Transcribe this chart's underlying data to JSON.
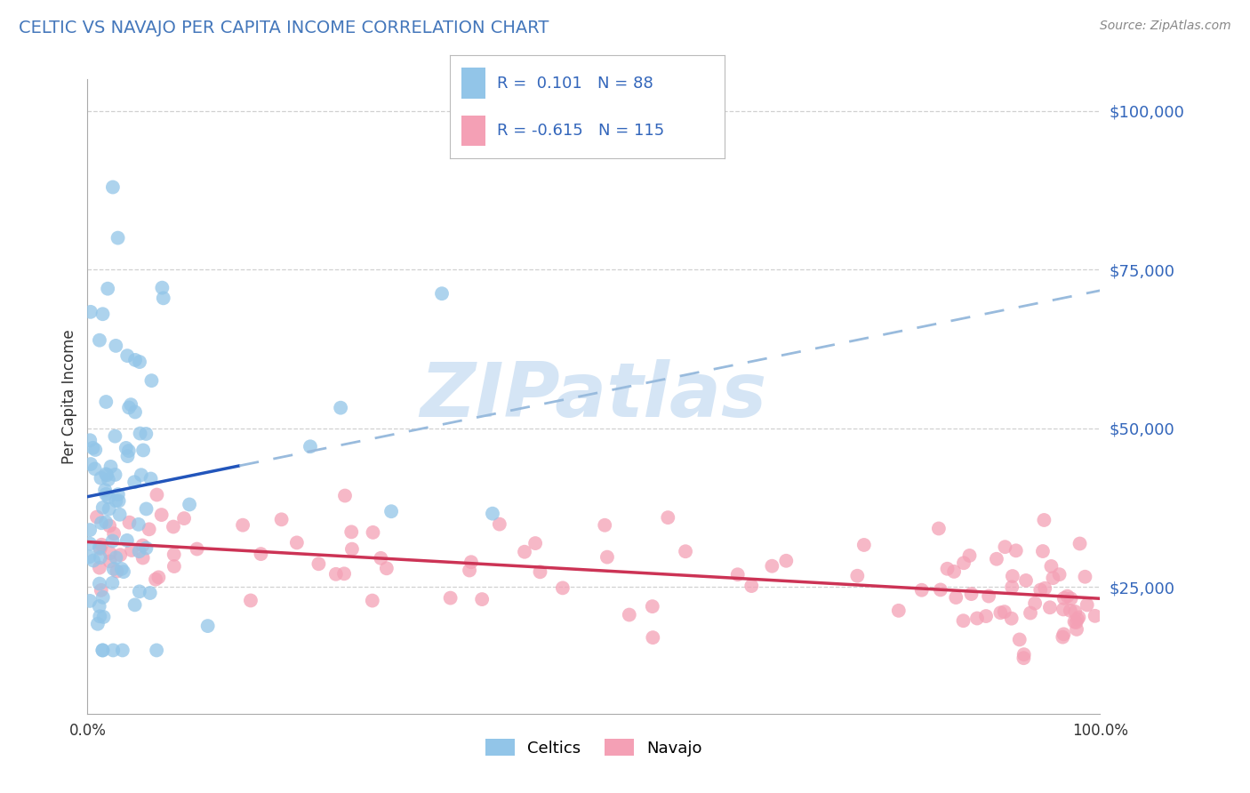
{
  "title": "CELTIC VS NAVAJO PER CAPITA INCOME CORRELATION CHART",
  "source": "Source: ZipAtlas.com",
  "ylabel": "Per Capita Income",
  "x_min": 0.0,
  "x_max": 100.0,
  "y_min": 5000,
  "y_max": 105000,
  "celtic_R": 0.101,
  "celtic_N": 88,
  "navajo_R": -0.615,
  "navajo_N": 115,
  "celtic_color": "#92C5E8",
  "navajo_color": "#F4A0B5",
  "celtic_line_color": "#2255BB",
  "navajo_line_color": "#CC3355",
  "celtic_dash_color": "#99BBDD",
  "background_color": "#FFFFFF",
  "grid_color": "#CCCCCC",
  "title_color": "#4477BB",
  "watermark": "ZIPatlas",
  "watermark_color": "#D5E5F5",
  "legend_text_color": "#3366BB",
  "tick_label_color": "#3366BB",
  "source_color": "#888888"
}
